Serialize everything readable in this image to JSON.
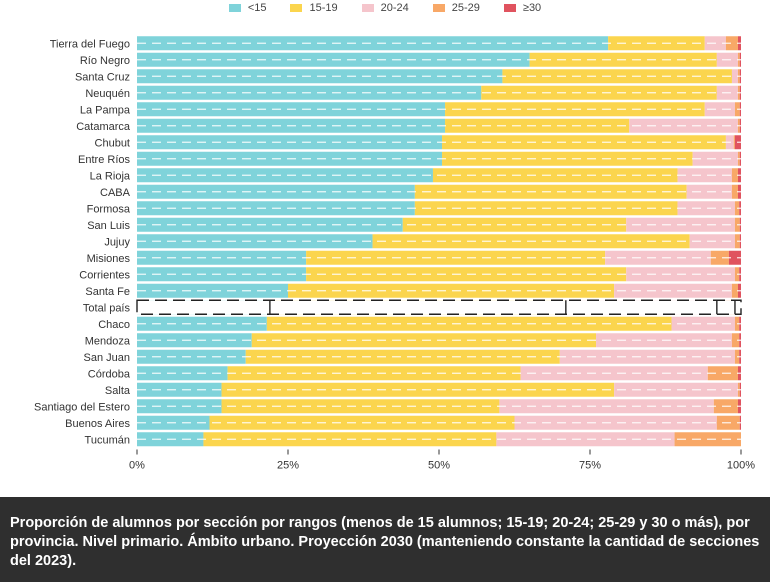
{
  "chart_data": {
    "type": "bar",
    "orientation": "horizontal",
    "stacked": true,
    "title": "",
    "xlabel": "",
    "ylabel": "",
    "xlim": [
      0,
      100
    ],
    "x_ticks": [
      "0%",
      "25%",
      "50%",
      "75%",
      "100%"
    ],
    "legend_position": "top-center",
    "highlight_category": "Total país",
    "categories": [
      "Tierra del Fuego",
      "Río Negro",
      "Santa Cruz",
      "Neuquén",
      "La Pampa",
      "Catamarca",
      "Chubut",
      "Entre Ríos",
      "La Rioja",
      "CABA",
      "Formosa",
      "San Luis",
      "Jujuy",
      "Misiones",
      "Corrientes",
      "Santa Fe",
      "Total país",
      "Chaco",
      "Mendoza",
      "San Juan",
      "Córdoba",
      "Salta",
      "Santiago del Estero",
      "Buenos Aires",
      "Tucumán"
    ],
    "series": [
      {
        "name": "<15",
        "color": "#7fd3da",
        "values": [
          78,
          65,
          60.5,
          57,
          51,
          51,
          50.5,
          50.5,
          49,
          46,
          46,
          44,
          39,
          28,
          28,
          25,
          22,
          21.5,
          19,
          18,
          15,
          14,
          14,
          12,
          11
        ]
      },
      {
        "name": "15-19",
        "color": "#fbd54e",
        "values": [
          16,
          31,
          38,
          39,
          43,
          30.5,
          47,
          41.5,
          40.5,
          45,
          43.5,
          37,
          52.5,
          49.5,
          53,
          54,
          49,
          67,
          57,
          52,
          48.5,
          65,
          46,
          50.5,
          48.5
        ]
      },
      {
        "name": "20-24",
        "color": "#f5c5cc",
        "values": [
          3.5,
          3.5,
          1,
          3.5,
          5,
          18,
          1.3,
          7.5,
          9,
          7.5,
          9.5,
          18,
          7.5,
          17.5,
          18,
          19.5,
          25,
          10.5,
          22.5,
          29,
          31,
          20.5,
          35.5,
          33.5,
          29.5
        ]
      },
      {
        "name": "25-29",
        "color": "#f8a867",
        "values": [
          2,
          0.3,
          0.3,
          0.3,
          0.8,
          0.3,
          0.2,
          0.3,
          1,
          1,
          0.7,
          0.8,
          0.8,
          3,
          0.7,
          1,
          3,
          0.7,
          1.2,
          0.7,
          5,
          0.3,
          4,
          3.8,
          11
        ]
      },
      {
        "name": "≥30",
        "color": "#e0535f",
        "values": [
          0.5,
          0.2,
          0.2,
          0.2,
          0.2,
          0.2,
          1,
          0.2,
          0.5,
          0.5,
          0.3,
          0.2,
          0.2,
          2,
          0.3,
          0.5,
          1,
          0.3,
          0.3,
          0.3,
          0.5,
          0.2,
          0.5,
          0.2,
          0
        ]
      }
    ]
  },
  "caption": "Proporción de alumnos por sección por rangos (menos de 15 alumnos; 15-19; 20-24; 25-29 y 30 o más), por provincia. Nivel primario. Ámbito urbano. Proyección 2030 (manteniendo constante la cantidad de secciones del 2023)."
}
